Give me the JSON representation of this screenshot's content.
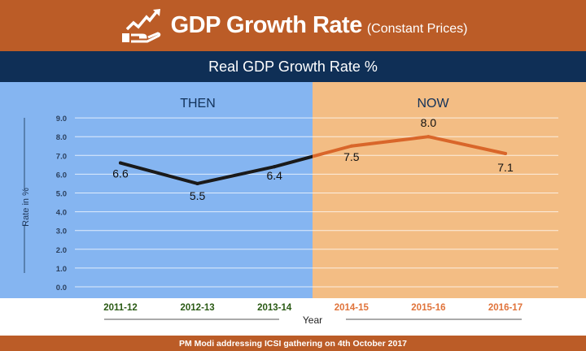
{
  "header": {
    "title": "GDP Growth Rate",
    "subtitle": "(Constant Prices)",
    "icon": "growth-chart-hand-icon"
  },
  "band": {
    "title": "Real GDP Growth Rate %"
  },
  "footer": {
    "text": "PM Modi addressing ICSI gathering on 4th October 2017"
  },
  "colors": {
    "then_bg": "#85b5f1",
    "now_bg": "#f3bd84",
    "then_line": "#1a1a1a",
    "now_line": "#d9662a",
    "then_tick": "#2a5a14",
    "now_tick": "#e0733a",
    "header": "#bb5c27",
    "band": "#0f2f56"
  },
  "chart_data": {
    "type": "line",
    "regions": [
      {
        "label": "THEN",
        "categories": [
          "2011-12",
          "2012-13",
          "2013-14"
        ]
      },
      {
        "label": "NOW",
        "categories": [
          "2014-15",
          "2015-16",
          "2016-17"
        ]
      }
    ],
    "categories": [
      "2011-12",
      "2012-13",
      "2013-14",
      "2014-15",
      "2015-16",
      "2016-17"
    ],
    "values": [
      6.6,
      5.5,
      6.4,
      7.5,
      8.0,
      7.1
    ],
    "data_labels": [
      "6.6",
      "5.5",
      "6.4",
      "7.5",
      "8.0",
      "7.1"
    ],
    "xlabel": "Year",
    "ylabel": "Rate in %",
    "ylim": [
      0,
      9
    ],
    "yticks": [
      "0.0",
      "1.0",
      "2.0",
      "3.0",
      "4.0",
      "5.0",
      "6.0",
      "7.0",
      "8.0",
      "9.0"
    ],
    "grid": true
  }
}
